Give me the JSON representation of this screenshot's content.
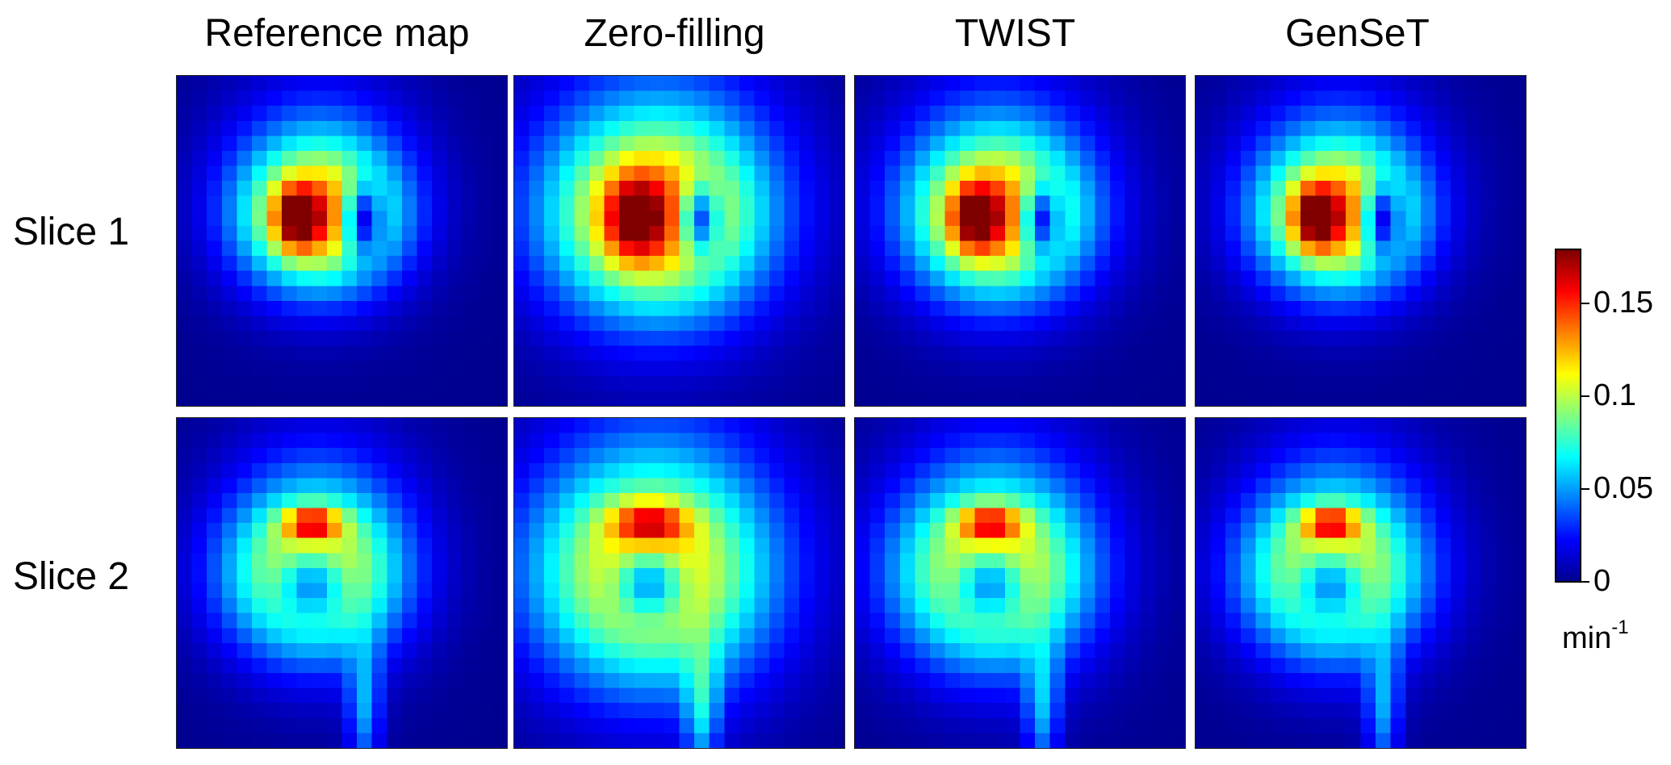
{
  "columns": [
    "Reference map",
    "Zero-filling",
    "TWIST",
    "GenSeT"
  ],
  "rows": [
    "Slice 1",
    "Slice 2"
  ],
  "colorbar": {
    "colormap": "jet",
    "min": 0,
    "max": 0.18,
    "ticks": [
      "0",
      "0.05",
      "0.1",
      "0.15"
    ],
    "tick_values": [
      0,
      0.05,
      0.1,
      0.15
    ],
    "unit_base": "min",
    "unit_exponent": "-1"
  },
  "background_color": "#00008f"
}
